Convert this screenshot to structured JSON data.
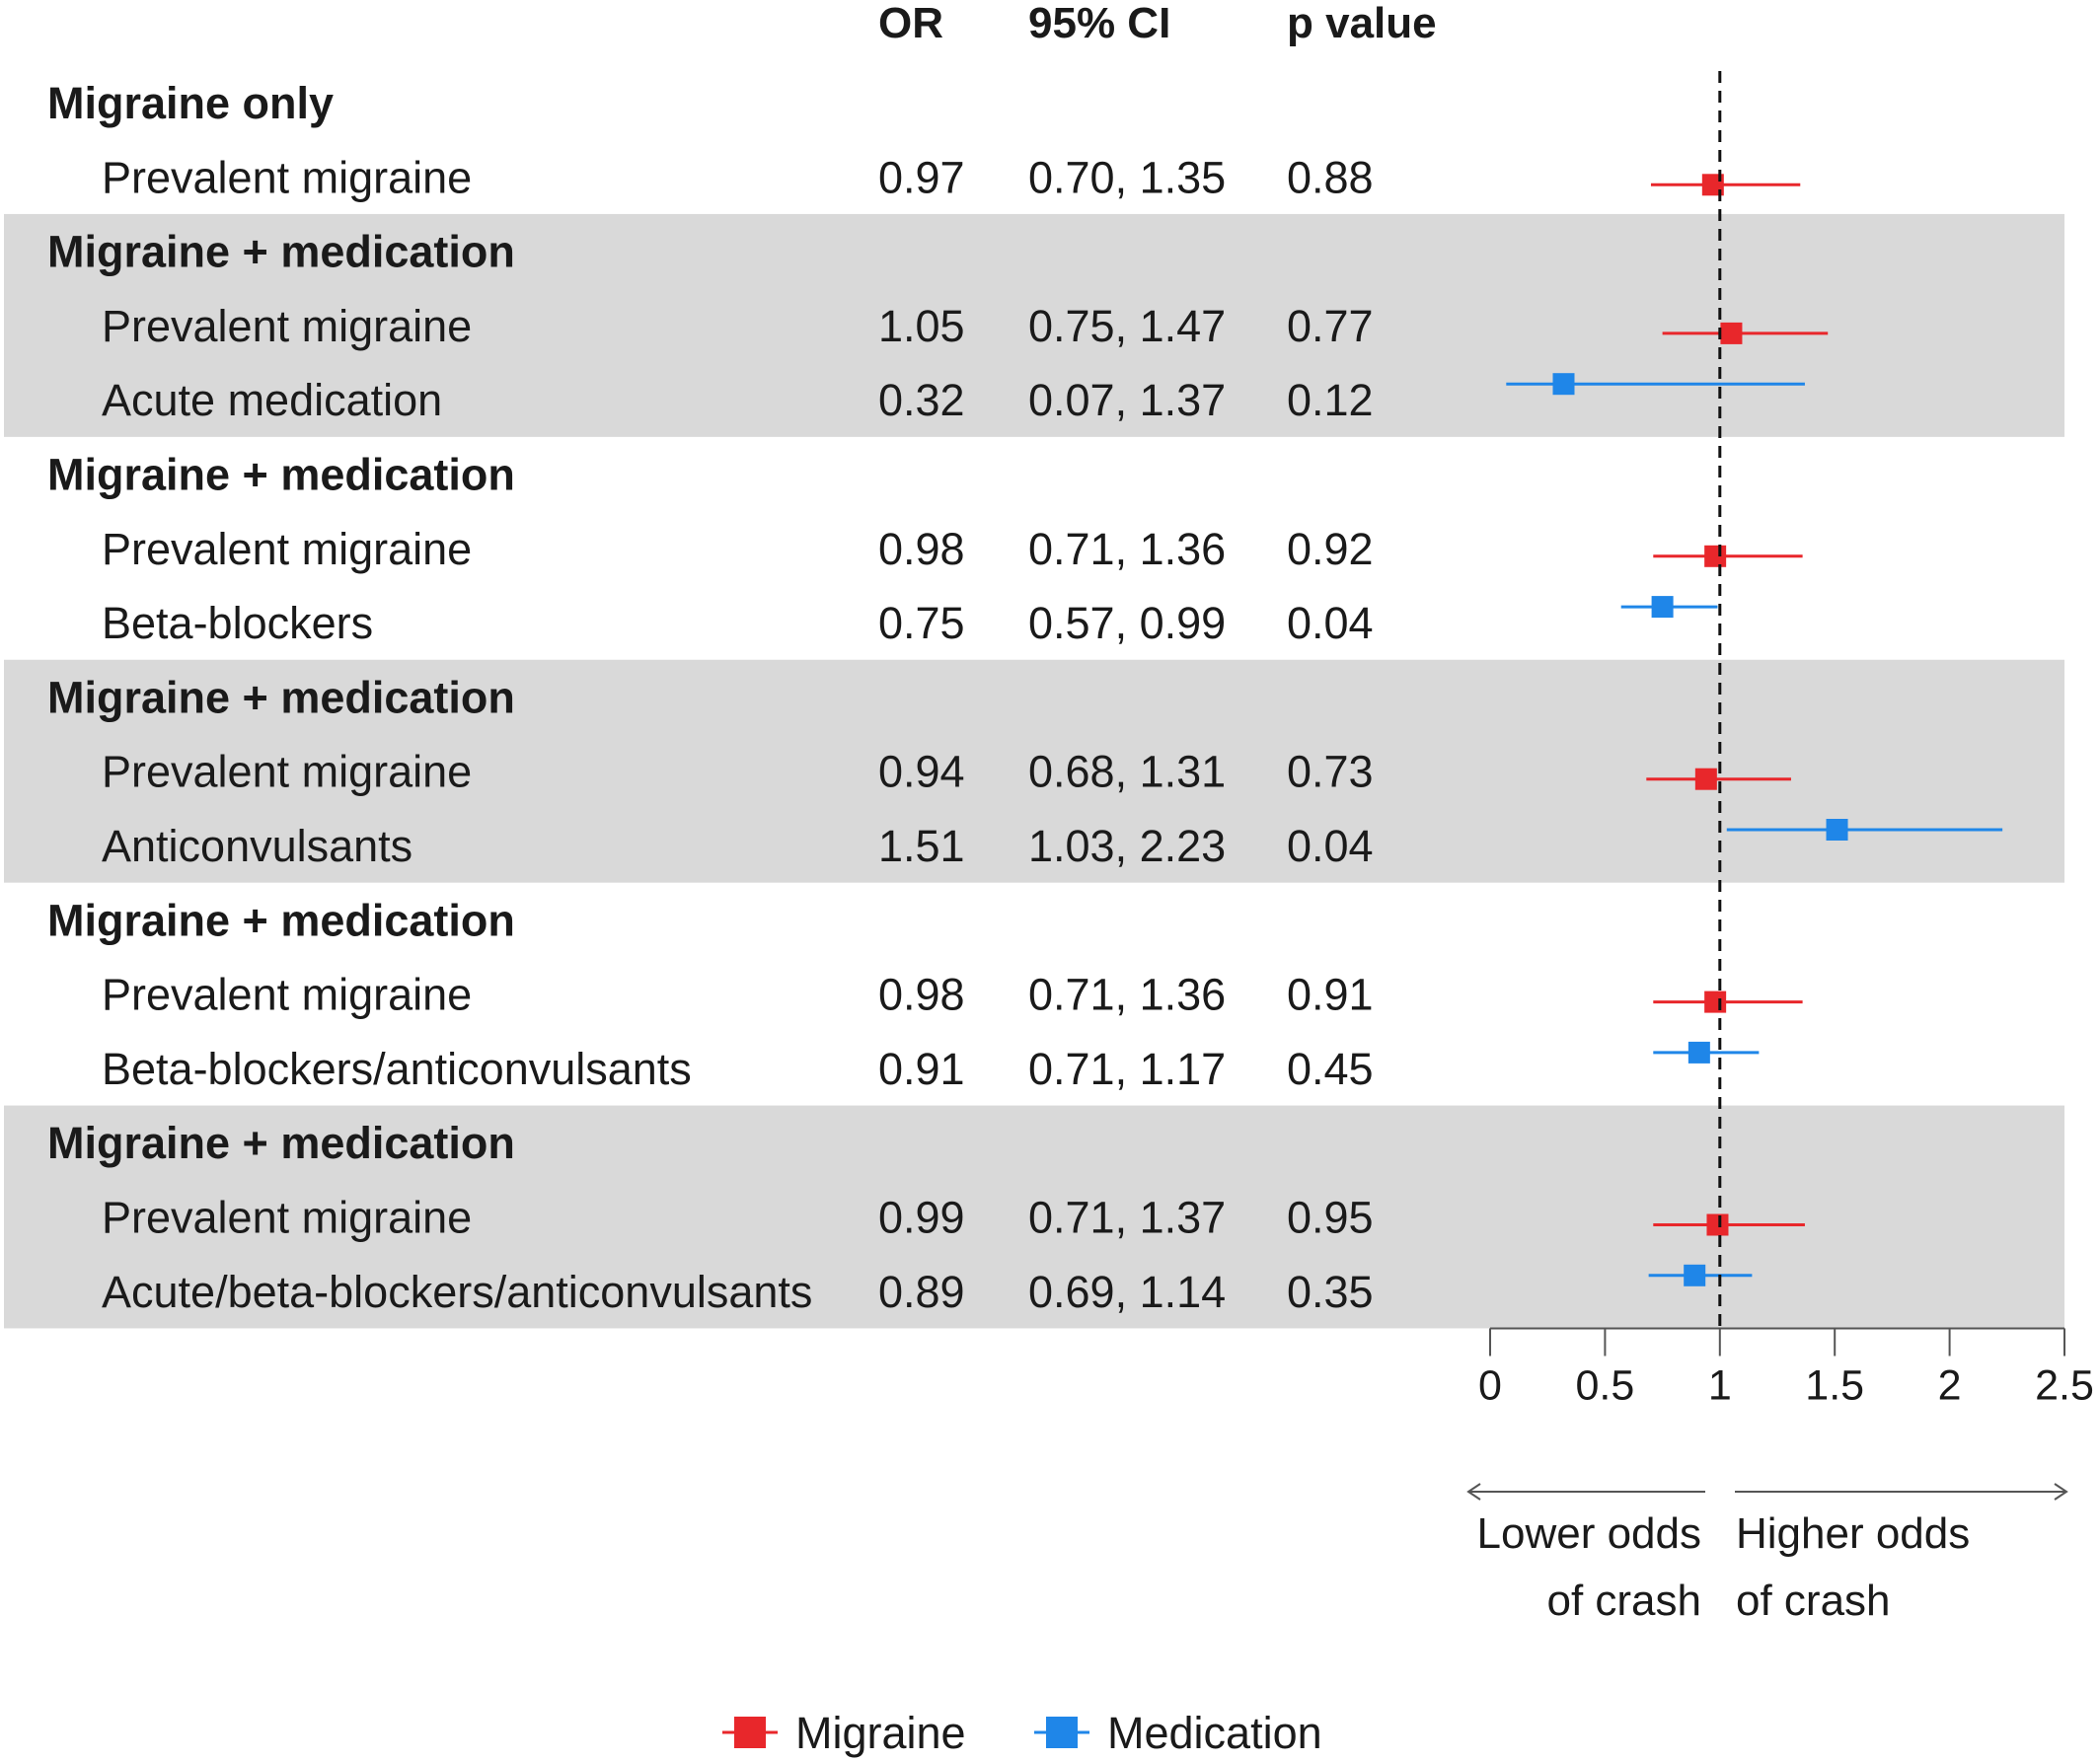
{
  "chart_data": {
    "type": "forest",
    "columns": {
      "or": "OR",
      "ci": "95% CI",
      "p": "p value"
    },
    "groups": [
      {
        "title": "Migraine only",
        "shaded": false,
        "rows": [
          {
            "label": "Prevalent migraine",
            "type": "migraine",
            "or_text": "0.97",
            "ci_text": "0.70, 1.35",
            "p_text": "0.88",
            "or": 0.97,
            "lo": 0.7,
            "hi": 1.35
          }
        ]
      },
      {
        "title": "Migraine + medication",
        "shaded": true,
        "rows": [
          {
            "label": "Prevalent migraine",
            "type": "migraine",
            "or_text": "1.05",
            "ci_text": "0.75, 1.47",
            "p_text": "0.77",
            "or": 1.05,
            "lo": 0.75,
            "hi": 1.47
          },
          {
            "label": "Acute medication",
            "type": "medication",
            "or_text": "0.32",
            "ci_text": "0.07, 1.37",
            "p_text": "0.12",
            "or": 0.32,
            "lo": 0.07,
            "hi": 1.37
          }
        ]
      },
      {
        "title": "Migraine + medication",
        "shaded": false,
        "rows": [
          {
            "label": "Prevalent migraine",
            "type": "migraine",
            "or_text": "0.98",
            "ci_text": "0.71, 1.36",
            "p_text": "0.92",
            "or": 0.98,
            "lo": 0.71,
            "hi": 1.36
          },
          {
            "label": "Beta-blockers",
            "type": "medication",
            "or_text": "0.75",
            "ci_text": "0.57, 0.99",
            "p_text": "0.04",
            "or": 0.75,
            "lo": 0.57,
            "hi": 0.99
          }
        ]
      },
      {
        "title": "Migraine + medication",
        "shaded": true,
        "rows": [
          {
            "label": "Prevalent migraine",
            "type": "migraine",
            "or_text": "0.94",
            "ci_text": "0.68, 1.31",
            "p_text": "0.73",
            "or": 0.94,
            "lo": 0.68,
            "hi": 1.31
          },
          {
            "label": "Anticonvulsants",
            "type": "medication",
            "or_text": "1.51",
            "ci_text": "1.03, 2.23",
            "p_text": "0.04",
            "or": 1.51,
            "lo": 1.03,
            "hi": 2.23
          }
        ]
      },
      {
        "title": "Migraine + medication",
        "shaded": false,
        "rows": [
          {
            "label": "Prevalent migraine",
            "type": "migraine",
            "or_text": "0.98",
            "ci_text": "0.71, 1.36",
            "p_text": "0.91",
            "or": 0.98,
            "lo": 0.71,
            "hi": 1.36
          },
          {
            "label": "Beta-blockers/anticonvulsants",
            "type": "medication",
            "or_text": "0.91",
            "ci_text": "0.71, 1.17",
            "p_text": "0.45",
            "or": 0.91,
            "lo": 0.71,
            "hi": 1.17
          }
        ]
      },
      {
        "title": "Migraine + medication",
        "shaded": true,
        "rows": [
          {
            "label": "Prevalent migraine",
            "type": "migraine",
            "or_text": "0.99",
            "ci_text": "0.71, 1.37",
            "p_text": "0.95",
            "or": 0.99,
            "lo": 0.71,
            "hi": 1.37
          },
          {
            "label": "Acute/beta-blockers/anticonvulsants",
            "type": "medication",
            "or_text": "0.89",
            "ci_text": "0.69, 1.14",
            "p_text": "0.35",
            "or": 0.89,
            "lo": 0.69,
            "hi": 1.14
          }
        ]
      }
    ],
    "x_axis": {
      "ticks": [
        "0",
        "0.5",
        "1",
        "1.5",
        "2",
        "2.5"
      ],
      "range": [
        0,
        2.5
      ],
      "reference": 1
    },
    "direction": {
      "lower": [
        "Lower odds",
        "of crash"
      ],
      "higher": [
        "Higher odds",
        "of crash"
      ]
    },
    "legend": [
      {
        "name": "Migraine",
        "type": "migraine"
      },
      {
        "name": "Medication",
        "type": "medication"
      }
    ],
    "colors": {
      "migraine": "#e8272b",
      "medication": "#1f86e8",
      "band": "#d9d9d9",
      "text": "#1a1a1a",
      "axis": "#555555"
    }
  }
}
